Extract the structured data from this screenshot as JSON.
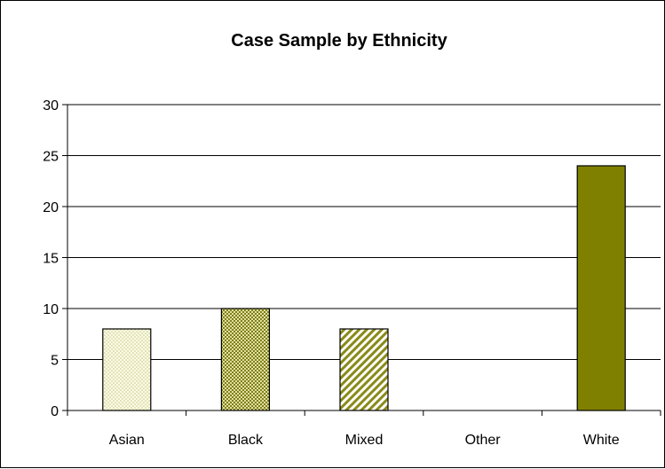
{
  "chart_data": {
    "type": "bar",
    "title": "Case Sample by Ethnicity",
    "categories": [
      "Asian",
      "Black",
      "Mixed",
      "Other",
      "White"
    ],
    "values": [
      8,
      10,
      8,
      0,
      24
    ],
    "ylim": [
      0,
      30
    ],
    "yticks": [
      "0",
      "5",
      "10",
      "15",
      "20",
      "25",
      "30"
    ],
    "grid": true,
    "legend": "none",
    "bar_colors": [
      "#f2f2c8",
      "#a6a64a",
      "#c0c080",
      "#ffffff",
      "#808000"
    ],
    "bar_patterns": [
      "dots-light",
      "dots-dense",
      "diagonal-stripes",
      "none",
      "solid"
    ]
  }
}
